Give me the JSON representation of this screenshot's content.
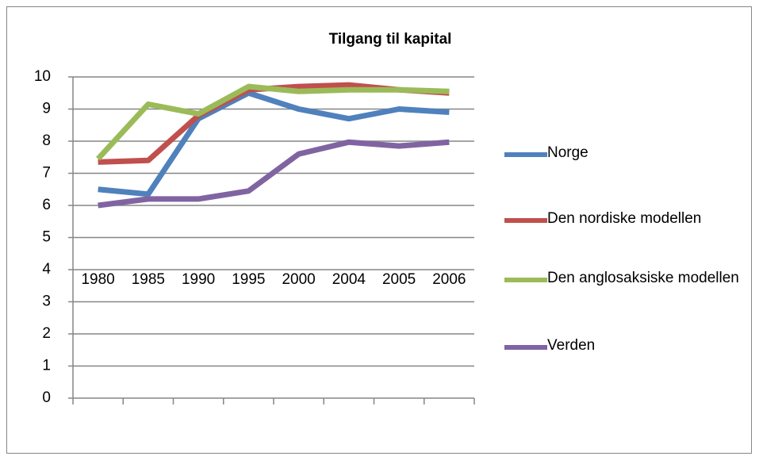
{
  "chart_data": {
    "type": "line",
    "title": "Tilgang til kapital",
    "categories": [
      "1980",
      "1985",
      "1990",
      "1995",
      "2000",
      "2004",
      "2005",
      "2006"
    ],
    "series": [
      {
        "name": "Norge",
        "color": "#4f81bd",
        "values": [
          6.5,
          6.35,
          8.7,
          9.5,
          9.0,
          8.7,
          9.0,
          8.9
        ]
      },
      {
        "name": "Den nordiske modellen",
        "color": "#c0504d",
        "values": [
          7.35,
          7.4,
          8.8,
          9.6,
          9.7,
          9.75,
          9.6,
          9.5
        ]
      },
      {
        "name": "Den anglosaksiske modellen",
        "color": "#9bbb59",
        "values": [
          7.45,
          9.15,
          8.85,
          9.7,
          9.55,
          9.6,
          9.6,
          9.55
        ]
      },
      {
        "name": "Verden",
        "color": "#8064a2",
        "values": [
          6.0,
          6.2,
          6.2,
          6.45,
          7.6,
          7.97,
          7.85,
          7.97
        ]
      }
    ],
    "ylim": [
      0,
      10
    ],
    "yticks": [
      0,
      1,
      2,
      3,
      4,
      5,
      6,
      7,
      8,
      9,
      10
    ],
    "grid": true,
    "legend": "right"
  }
}
